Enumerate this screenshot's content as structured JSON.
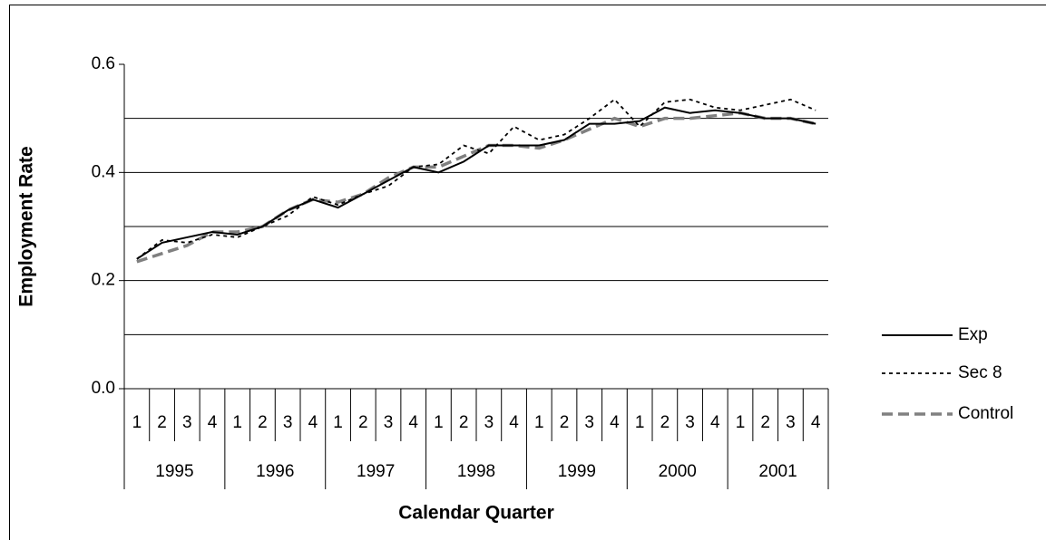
{
  "chart_data": {
    "type": "line",
    "x_title": "Calendar Quarter",
    "y_title": "Employment Rate",
    "categories": [
      "1",
      "2",
      "3",
      "4",
      "1",
      "2",
      "3",
      "4",
      "1",
      "2",
      "3",
      "4",
      "1",
      "2",
      "3",
      "4",
      "1",
      "2",
      "3",
      "4",
      "1",
      "2",
      "3",
      "4",
      "1",
      "2",
      "3",
      "4"
    ],
    "years": [
      "1995",
      "1996",
      "1997",
      "1998",
      "1999",
      "2000",
      "2001"
    ],
    "ylim": [
      0,
      0.6
    ],
    "yticks": [
      {
        "value": 0,
        "label": "0.0"
      },
      0.2,
      0.4,
      0.6
    ],
    "grid_lines": [
      0.1,
      0.2,
      0.3,
      0.4,
      0.5
    ],
    "grid": true,
    "legend": "right",
    "series": [
      {
        "name": "Exp",
        "color": "#000000",
        "dash": "solid",
        "values": [
          0.24,
          0.27,
          0.28,
          0.29,
          0.285,
          0.3,
          0.33,
          0.35,
          0.335,
          0.36,
          0.385,
          0.41,
          0.4,
          0.42,
          0.45,
          0.45,
          0.45,
          0.46,
          0.49,
          0.49,
          0.495,
          0.52,
          0.51,
          0.515,
          0.51,
          0.5,
          0.5,
          0.49
        ]
      },
      {
        "name": "Sec 8",
        "color": "#000000",
        "dash": "dotted",
        "values": [
          0.24,
          0.275,
          0.27,
          0.285,
          0.28,
          0.3,
          0.32,
          0.355,
          0.34,
          0.36,
          0.375,
          0.41,
          0.415,
          0.45,
          0.435,
          0.485,
          0.46,
          0.47,
          0.5,
          0.535,
          0.485,
          0.53,
          0.535,
          0.52,
          0.515,
          0.525,
          0.535,
          0.515
        ]
      },
      {
        "name": "Control",
        "color": "#808080",
        "dash": "dashed",
        "values": [
          0.235,
          0.25,
          0.265,
          0.29,
          0.29,
          0.3,
          0.33,
          0.35,
          0.345,
          0.36,
          0.39,
          0.41,
          0.41,
          0.43,
          0.45,
          0.45,
          0.445,
          0.46,
          0.48,
          0.5,
          0.485,
          0.5,
          0.5,
          0.505,
          0.51,
          0.5,
          0.5,
          0.49
        ]
      }
    ]
  }
}
